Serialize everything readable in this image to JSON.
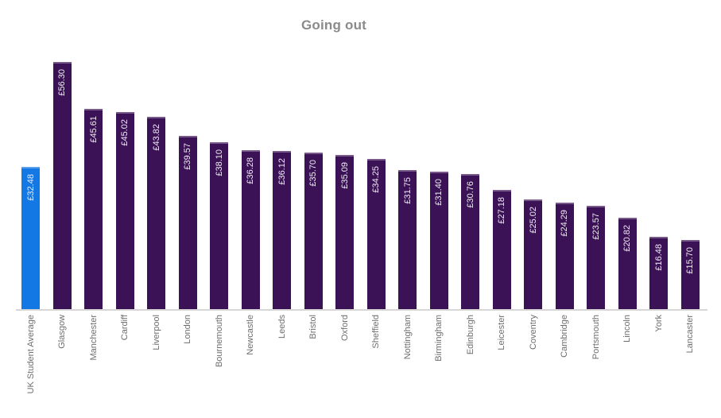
{
  "chart_data": {
    "type": "bar",
    "title": "Going out",
    "orientation": "vertical",
    "categories": [
      "UK Student Average",
      "Glasgow",
      "Manchester",
      "Cardiff",
      "Liverpool",
      "London",
      "Bournemouth",
      "Newcastle",
      "Leeds",
      "Bristol",
      "Oxford",
      "Sheffield",
      "Nottingham",
      "Birmingham",
      "Edinburgh",
      "Leicester",
      "Coventry",
      "Cambridge",
      "Portsmouth",
      "Lincoln",
      "York",
      "Lancaster"
    ],
    "values": [
      32.48,
      56.3,
      45.61,
      45.02,
      43.82,
      39.57,
      38.1,
      36.28,
      36.12,
      35.7,
      35.09,
      34.25,
      31.75,
      31.4,
      30.76,
      27.18,
      25.02,
      24.29,
      23.57,
      20.82,
      16.48,
      15.7
    ],
    "value_prefix": "£",
    "value_labels": [
      "£32.48",
      "£56.30",
      "£45.61",
      "£45.02",
      "£43.82",
      "£39.57",
      "£38.10",
      "£36.28",
      "£36.12",
      "£35.70",
      "£35.09",
      "£34.25",
      "£31.75",
      "£31.40",
      "£30.76",
      "£27.18",
      "£25.02",
      "£24.29",
      "£23.57",
      "£20.82",
      "£16.48",
      "£15.70"
    ],
    "value_label_position": "inside-top-rotated",
    "highlight_index": 0,
    "colors": {
      "highlight_bar": "#1378e4",
      "bar": "#3c1256",
      "value_label": "#f0ecf4",
      "category_label": "#6e6e6e",
      "axis_line": "#d7d7d7",
      "title": "#8a8a8a"
    },
    "ylim": [
      0,
      60
    ],
    "grid": false,
    "legend": false,
    "xlabel": "",
    "ylabel": ""
  }
}
